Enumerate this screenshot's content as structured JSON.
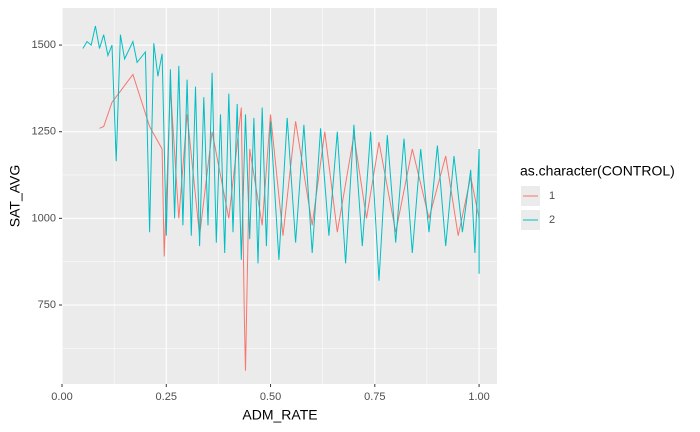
{
  "chart_data": {
    "type": "line",
    "x_label": "ADM_RATE",
    "y_label": "SAT_AVG",
    "legend_title": "as.character(CONTROL)",
    "legend_position": "right",
    "xlim": [
      0,
      1.043
    ],
    "ylim": [
      522,
      1607
    ],
    "xticks": [
      {
        "value": 0,
        "label": "0.00"
      },
      {
        "value": 0.25,
        "label": "0.25"
      },
      {
        "value": 0.5,
        "label": "0.50"
      },
      {
        "value": 0.75,
        "label": "0.75"
      },
      {
        "value": 1,
        "label": "1.00"
      }
    ],
    "yticks": [
      750,
      1000,
      1250,
      1500
    ],
    "x_minor_ticks": [
      0.125,
      0.375,
      0.625,
      0.875
    ],
    "y_minor_ticks": [
      625,
      875,
      1125,
      1375
    ],
    "grid": true,
    "series": [
      {
        "name": "1",
        "color": "#F8766D",
        "x": [
          0.09,
          0.1,
          0.12,
          0.17,
          0.21,
          0.24,
          0.245,
          0.26,
          0.28,
          0.3,
          0.33,
          0.36,
          0.4,
          0.43,
          0.437,
          0.44,
          0.45,
          0.48,
          0.5,
          0.53,
          0.56,
          0.6,
          0.63,
          0.66,
          0.7,
          0.73,
          0.76,
          0.8,
          0.84,
          0.88,
          0.92,
          0.95,
          0.98,
          1.0
        ],
        "values": [
          1260,
          1265,
          1335,
          1415,
          1265,
          1200,
          890,
          1380,
          1000,
          1300,
          950,
          1250,
          1000,
          1320,
          720,
          560,
          1200,
          980,
          1300,
          950,
          1280,
          980,
          1250,
          960,
          1240,
          1000,
          1220,
          960,
          1200,
          1000,
          1180,
          950,
          1120,
          1000
        ]
      },
      {
        "name": "2",
        "color": "#00BFC4",
        "x": [
          0.05,
          0.06,
          0.07,
          0.08,
          0.09,
          0.1,
          0.11,
          0.12,
          0.13,
          0.14,
          0.15,
          0.17,
          0.18,
          0.2,
          0.21,
          0.22,
          0.23,
          0.24,
          0.25,
          0.26,
          0.27,
          0.28,
          0.29,
          0.3,
          0.31,
          0.32,
          0.33,
          0.34,
          0.35,
          0.36,
          0.37,
          0.38,
          0.39,
          0.4,
          0.41,
          0.42,
          0.43,
          0.44,
          0.45,
          0.46,
          0.47,
          0.48,
          0.49,
          0.5,
          0.52,
          0.54,
          0.56,
          0.58,
          0.6,
          0.62,
          0.64,
          0.66,
          0.68,
          0.7,
          0.72,
          0.74,
          0.76,
          0.78,
          0.8,
          0.82,
          0.84,
          0.86,
          0.88,
          0.9,
          0.92,
          0.94,
          0.96,
          0.98,
          0.99,
          1.0,
          1.0
        ],
        "values": [
          1490,
          1510,
          1500,
          1555,
          1490,
          1530,
          1470,
          1500,
          1165,
          1530,
          1460,
          1510,
          1450,
          1480,
          960,
          1505,
          1410,
          1475,
          950,
          1430,
          1000,
          1440,
          980,
          1400,
          950,
          1380,
          920,
          1350,
          980,
          1420,
          930,
          1300,
          900,
          1360,
          960,
          1330,
          880,
          1300,
          940,
          1290,
          870,
          1320,
          920,
          1280,
          880,
          1290,
          930,
          1270,
          900,
          1260,
          950,
          1250,
          870,
          1270,
          920,
          1250,
          820,
          1240,
          930,
          1230,
          900,
          1200,
          960,
          1210,
          920,
          1180,
          960,
          1140,
          900,
          1200,
          840
        ]
      }
    ]
  }
}
